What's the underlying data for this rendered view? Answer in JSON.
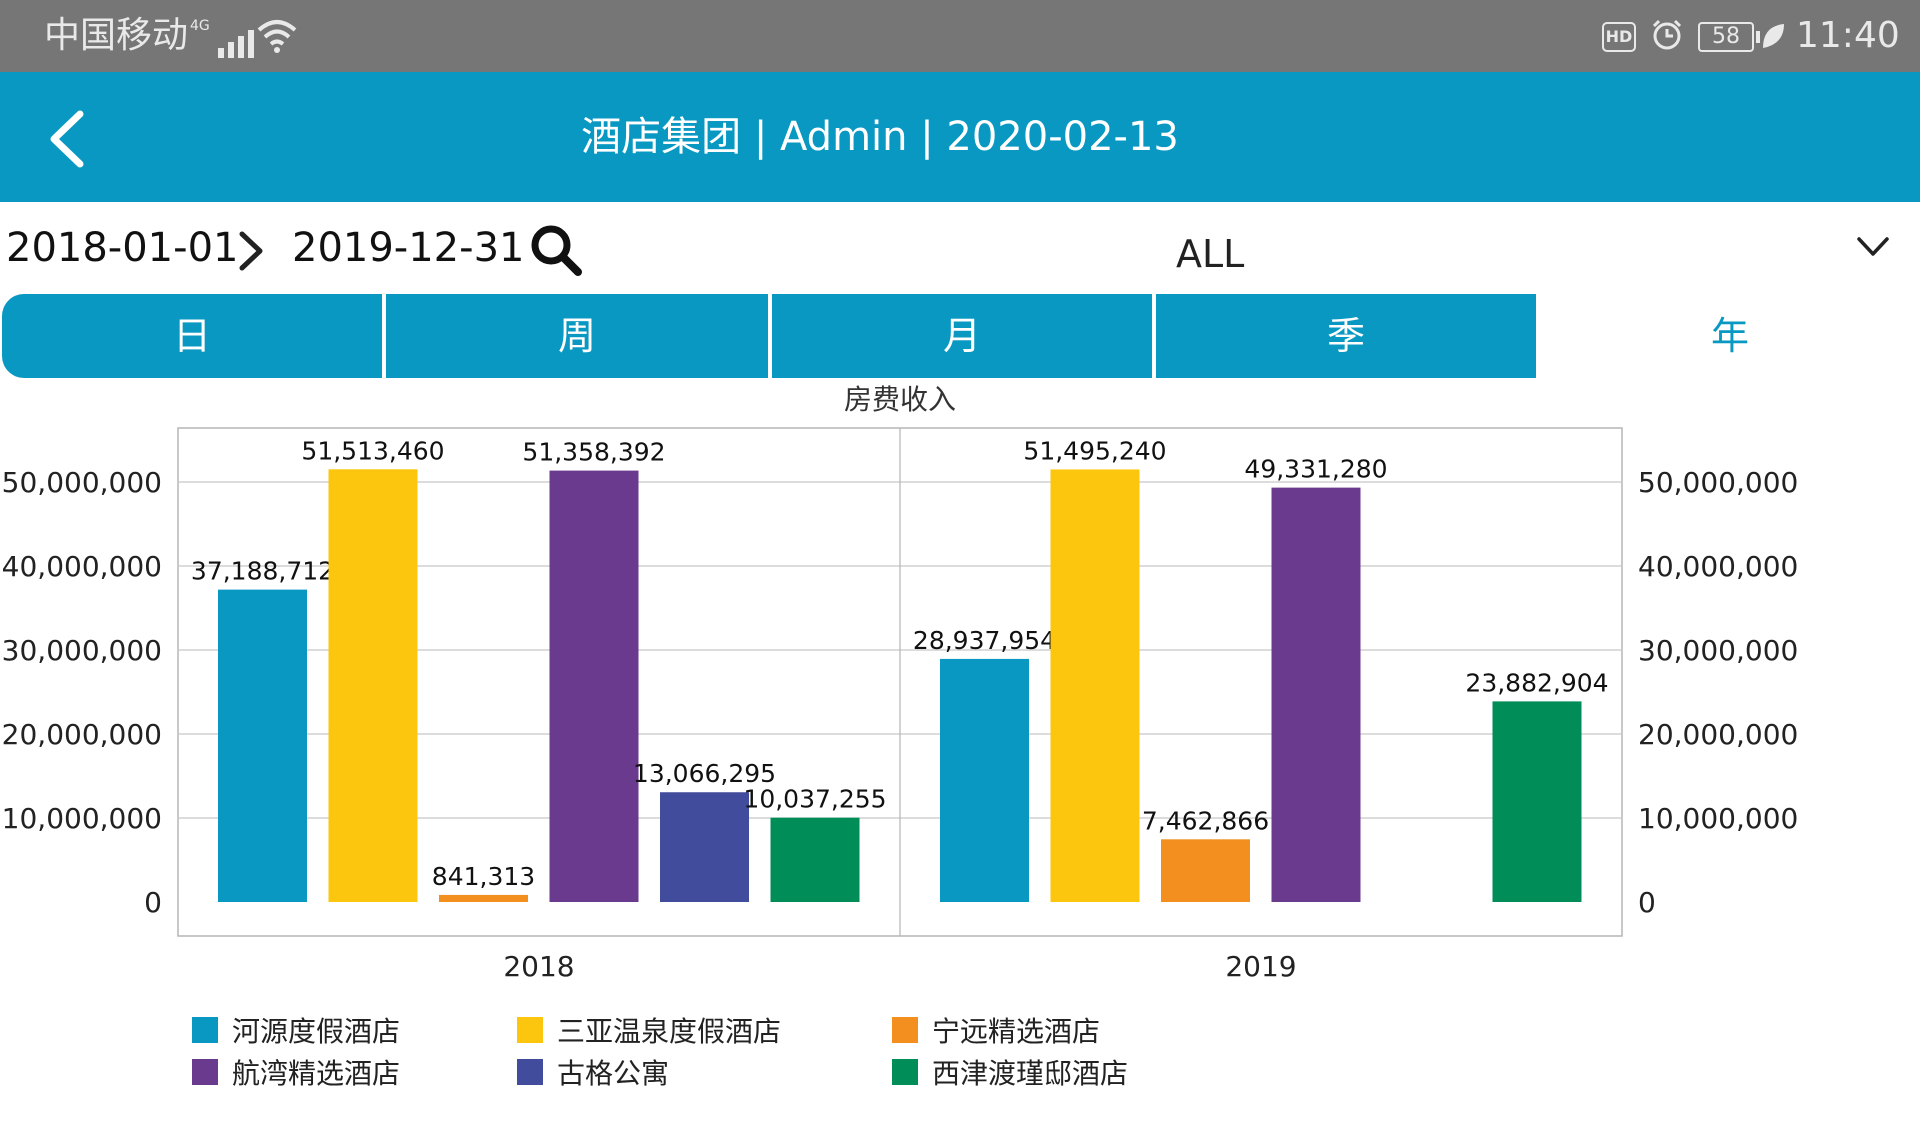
{
  "status_bar": {
    "carrier": "中国移动",
    "network": "4G",
    "battery": "58",
    "hd": "HD",
    "time": "11:40"
  },
  "header": {
    "title": "酒店集团 | Admin | 2020-02-13",
    "back_icon": "chevron-left-icon"
  },
  "filters": {
    "start_date": "2018-01-01",
    "end_date": "2019-12-31",
    "hotel_select": "ALL"
  },
  "tabs": [
    {
      "label": "日",
      "active": false
    },
    {
      "label": "周",
      "active": false
    },
    {
      "label": "月",
      "active": false
    },
    {
      "label": "季",
      "active": false
    },
    {
      "label": "年",
      "active": true
    }
  ],
  "colors": {
    "accent": "#0898c2"
  },
  "chart_data": {
    "type": "bar",
    "title": "房费收入",
    "categories": [
      "2018",
      "2019"
    ],
    "ylim": [
      0,
      55000000
    ],
    "yticks": [
      0,
      10000000,
      20000000,
      30000000,
      40000000,
      50000000
    ],
    "ytick_labels": [
      "0",
      "10,000,000",
      "20,000,000",
      "30,000,000",
      "40,000,000",
      "50,000,000"
    ],
    "grid": true,
    "legend_position": "bottom-left",
    "series": [
      {
        "name": "河源度假酒店",
        "color": "#0898c2",
        "values": [
          37188712,
          28937954
        ],
        "labels": [
          "37,188,712",
          "28,937,954"
        ]
      },
      {
        "name": "三亚温泉度假酒店",
        "color": "#fcc60e",
        "values": [
          51513460,
          51495240
        ],
        "labels": [
          "51,513,460",
          "51,495,240"
        ]
      },
      {
        "name": "宁远精选酒店",
        "color": "#f28f1e",
        "values": [
          841313,
          7462866
        ],
        "labels": [
          "841,313",
          "7,462,866"
        ]
      },
      {
        "name": "航湾精选酒店",
        "color": "#6a3a8e",
        "values": [
          51358392,
          49331280
        ],
        "labels": [
          "51,358,392",
          "49,331,280"
        ]
      },
      {
        "name": "古格公寓",
        "color": "#424c9c",
        "values": [
          13066295,
          null
        ],
        "labels": [
          "13,066,295",
          ""
        ]
      },
      {
        "name": "西津渡瑾邸酒店",
        "color": "#008d58",
        "values": [
          10037255,
          23882904
        ],
        "labels": [
          "10,037,255",
          "23,882,904"
        ]
      }
    ]
  }
}
